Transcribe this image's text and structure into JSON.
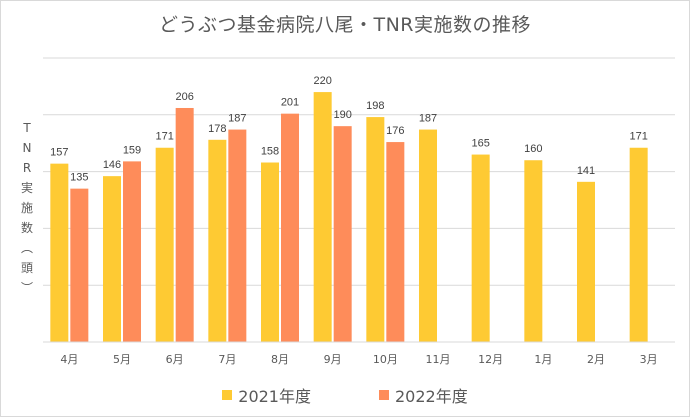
{
  "chart_data": {
    "type": "bar",
    "title": "どうぶつ基金病院八尾・TNR実施数の推移",
    "xlabel": "",
    "ylabel": "TNR実施数（頭）",
    "ylim": [
      0,
      250
    ],
    "ytick_step": 50,
    "grid": true,
    "show_ytick_labels": false,
    "legend_position": "bottom",
    "categories": [
      "4月",
      "5月",
      "6月",
      "7月",
      "8月",
      "9月",
      "10月",
      "11月",
      "12月",
      "1月",
      "2月",
      "3月"
    ],
    "series": [
      {
        "name": "2021年度",
        "color": "#FECA33",
        "values": [
          157,
          146,
          171,
          178,
          158,
          220,
          198,
          187,
          165,
          160,
          141,
          171
        ]
      },
      {
        "name": "2022年度",
        "color": "#FE8C5A",
        "values": [
          135,
          159,
          206,
          187,
          201,
          190,
          176,
          null,
          null,
          null,
          null,
          null
        ]
      }
    ]
  }
}
